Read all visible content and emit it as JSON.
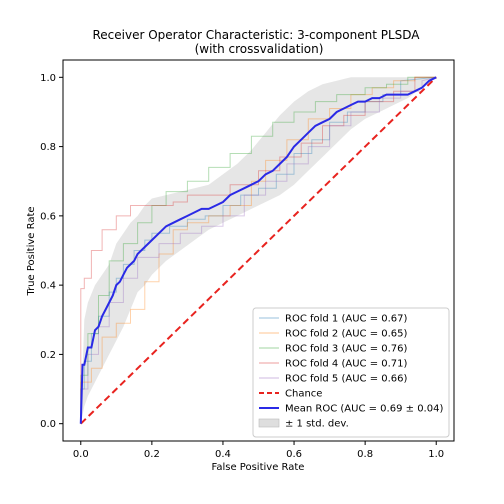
{
  "chart_data": {
    "type": "line",
    "title": "Receiver Operator Characteristic: 3-component PLSDA",
    "subtitle": "(with crossvalidation)",
    "xlabel": "False Positive Rate",
    "ylabel": "True Positive Rate",
    "xlim": [
      -0.05,
      1.05
    ],
    "ylim": [
      -0.05,
      1.05
    ],
    "xticks": [
      "0.0",
      "0.2",
      "0.4",
      "0.6",
      "0.8",
      "1.0"
    ],
    "yticks": [
      "0.0",
      "0.2",
      "0.4",
      "0.6",
      "0.8",
      "1.0"
    ],
    "grid": false,
    "legend_position": "lower-right",
    "series": [
      {
        "name": "ROC fold 1 (AUC = 0.67)",
        "color": "#1f77b4",
        "style": "step-thin",
        "x": [
          0.0,
          0.0,
          0.01,
          0.01,
          0.03,
          0.03,
          0.05,
          0.05,
          0.08,
          0.08,
          0.1,
          0.1,
          0.12,
          0.12,
          0.15,
          0.15,
          0.18,
          0.18,
          0.2,
          0.2,
          0.25,
          0.25,
          0.3,
          0.3,
          0.35,
          0.35,
          0.4,
          0.4,
          0.45,
          0.45,
          0.5,
          0.5,
          0.55,
          0.55,
          0.6,
          0.6,
          0.65,
          0.65,
          0.7,
          0.7,
          0.75,
          0.75,
          0.8,
          0.8,
          0.85,
          0.85,
          0.9,
          0.9,
          1.0
        ],
        "y": [
          0.0,
          0.1,
          0.1,
          0.18,
          0.18,
          0.26,
          0.26,
          0.31,
          0.31,
          0.38,
          0.38,
          0.42,
          0.42,
          0.46,
          0.46,
          0.5,
          0.5,
          0.53,
          0.53,
          0.55,
          0.55,
          0.57,
          0.57,
          0.59,
          0.59,
          0.6,
          0.6,
          0.63,
          0.63,
          0.66,
          0.66,
          0.68,
          0.68,
          0.72,
          0.72,
          0.78,
          0.78,
          0.82,
          0.82,
          0.87,
          0.87,
          0.9,
          0.9,
          0.93,
          0.93,
          0.95,
          0.95,
          0.99,
          1.0
        ]
      },
      {
        "name": "ROC fold 2 (AUC = 0.65)",
        "color": "#ff7f0e",
        "style": "step-thin",
        "x": [
          0.0,
          0.0,
          0.03,
          0.03,
          0.06,
          0.06,
          0.1,
          0.1,
          0.14,
          0.14,
          0.18,
          0.18,
          0.22,
          0.22,
          0.26,
          0.26,
          0.3,
          0.3,
          0.36,
          0.36,
          0.42,
          0.42,
          0.48,
          0.48,
          0.52,
          0.52,
          0.58,
          0.58,
          0.64,
          0.64,
          0.7,
          0.7,
          0.76,
          0.76,
          0.82,
          0.82,
          0.88,
          0.88,
          0.94,
          0.94,
          1.0
        ],
        "y": [
          0.0,
          0.12,
          0.12,
          0.16,
          0.16,
          0.25,
          0.25,
          0.29,
          0.29,
          0.33,
          0.33,
          0.41,
          0.41,
          0.49,
          0.49,
          0.56,
          0.56,
          0.58,
          0.58,
          0.6,
          0.6,
          0.63,
          0.63,
          0.7,
          0.7,
          0.76,
          0.76,
          0.82,
          0.82,
          0.88,
          0.88,
          0.91,
          0.91,
          0.95,
          0.95,
          0.97,
          0.97,
          0.99,
          0.99,
          1.0,
          1.0
        ]
      },
      {
        "name": "ROC fold 3 (AUC = 0.76)",
        "color": "#2ca02c",
        "style": "step-thin",
        "x": [
          0.0,
          0.0,
          0.02,
          0.02,
          0.05,
          0.05,
          0.08,
          0.08,
          0.12,
          0.12,
          0.16,
          0.16,
          0.2,
          0.2,
          0.24,
          0.24,
          0.3,
          0.3,
          0.36,
          0.36,
          0.42,
          0.42,
          0.48,
          0.48,
          0.54,
          0.54,
          0.6,
          0.6,
          0.66,
          0.66,
          0.72,
          0.72,
          0.8,
          0.8,
          0.86,
          0.86,
          0.92,
          0.92,
          1.0
        ],
        "y": [
          0.0,
          0.14,
          0.14,
          0.26,
          0.26,
          0.37,
          0.37,
          0.47,
          0.47,
          0.52,
          0.52,
          0.58,
          0.58,
          0.63,
          0.63,
          0.67,
          0.67,
          0.7,
          0.7,
          0.74,
          0.74,
          0.78,
          0.78,
          0.83,
          0.83,
          0.87,
          0.87,
          0.9,
          0.9,
          0.93,
          0.93,
          0.95,
          0.95,
          0.97,
          0.97,
          0.98,
          0.98,
          1.0,
          1.0
        ]
      },
      {
        "name": "ROC fold 4 (AUC = 0.71)",
        "color": "#d62728",
        "style": "step-thin",
        "x": [
          0.0,
          0.0,
          0.01,
          0.01,
          0.03,
          0.03,
          0.06,
          0.06,
          0.1,
          0.1,
          0.14,
          0.14,
          0.2,
          0.2,
          0.26,
          0.26,
          0.3,
          0.3,
          0.36,
          0.36,
          0.42,
          0.42,
          0.5,
          0.5,
          0.56,
          0.56,
          0.62,
          0.62,
          0.68,
          0.68,
          0.74,
          0.74,
          0.8,
          0.8,
          0.88,
          0.88,
          0.94,
          0.94,
          1.0
        ],
        "y": [
          0.0,
          0.39,
          0.39,
          0.42,
          0.42,
          0.5,
          0.5,
          0.56,
          0.56,
          0.6,
          0.6,
          0.63,
          0.63,
          0.63,
          0.63,
          0.64,
          0.64,
          0.66,
          0.66,
          0.66,
          0.66,
          0.69,
          0.69,
          0.73,
          0.73,
          0.77,
          0.77,
          0.81,
          0.81,
          0.86,
          0.86,
          0.89,
          0.89,
          0.93,
          0.93,
          0.96,
          0.96,
          1.0,
          1.0
        ]
      },
      {
        "name": "ROC fold 5 (AUC = 0.66)",
        "color": "#9467bd",
        "style": "step-thin",
        "x": [
          0.0,
          0.0,
          0.02,
          0.02,
          0.05,
          0.05,
          0.08,
          0.08,
          0.12,
          0.12,
          0.16,
          0.16,
          0.22,
          0.22,
          0.28,
          0.28,
          0.34,
          0.34,
          0.4,
          0.4,
          0.46,
          0.46,
          0.52,
          0.52,
          0.58,
          0.58,
          0.64,
          0.64,
          0.7,
          0.7,
          0.76,
          0.76,
          0.84,
          0.84,
          0.9,
          0.9,
          0.96,
          0.96,
          1.0
        ],
        "y": [
          0.0,
          0.1,
          0.1,
          0.2,
          0.2,
          0.28,
          0.28,
          0.35,
          0.35,
          0.42,
          0.42,
          0.48,
          0.48,
          0.52,
          0.52,
          0.55,
          0.55,
          0.57,
          0.57,
          0.6,
          0.6,
          0.66,
          0.66,
          0.7,
          0.7,
          0.75,
          0.75,
          0.8,
          0.8,
          0.86,
          0.86,
          0.9,
          0.9,
          0.94,
          0.94,
          0.96,
          0.96,
          0.99,
          1.0
        ]
      },
      {
        "name": "Chance",
        "color": "#e8231f",
        "style": "dashed",
        "x": [
          0.0,
          1.0
        ],
        "y": [
          0.0,
          1.0
        ]
      },
      {
        "name": "Mean ROC (AUC = 0.69 ± 0.04)",
        "color": "#2a2ae6",
        "style": "bold",
        "x": [
          0.0,
          0.005,
          0.01,
          0.02,
          0.03,
          0.04,
          0.05,
          0.06,
          0.07,
          0.08,
          0.09,
          0.1,
          0.11,
          0.12,
          0.13,
          0.14,
          0.15,
          0.16,
          0.18,
          0.2,
          0.22,
          0.24,
          0.26,
          0.28,
          0.3,
          0.32,
          0.34,
          0.36,
          0.38,
          0.4,
          0.42,
          0.44,
          0.46,
          0.48,
          0.5,
          0.52,
          0.54,
          0.56,
          0.58,
          0.6,
          0.62,
          0.64,
          0.66,
          0.68,
          0.7,
          0.72,
          0.74,
          0.76,
          0.78,
          0.8,
          0.82,
          0.84,
          0.86,
          0.88,
          0.9,
          0.92,
          0.94,
          0.96,
          0.98,
          1.0
        ],
        "y": [
          0.0,
          0.17,
          0.17,
          0.22,
          0.22,
          0.27,
          0.28,
          0.31,
          0.33,
          0.35,
          0.37,
          0.4,
          0.41,
          0.43,
          0.45,
          0.46,
          0.47,
          0.49,
          0.51,
          0.53,
          0.55,
          0.57,
          0.58,
          0.59,
          0.6,
          0.61,
          0.62,
          0.62,
          0.63,
          0.64,
          0.66,
          0.67,
          0.68,
          0.69,
          0.7,
          0.72,
          0.73,
          0.75,
          0.77,
          0.8,
          0.82,
          0.84,
          0.86,
          0.87,
          0.88,
          0.9,
          0.91,
          0.92,
          0.93,
          0.93,
          0.94,
          0.94,
          0.95,
          0.95,
          0.95,
          0.95,
          0.96,
          0.97,
          0.99,
          1.0
        ]
      }
    ],
    "std_band": {
      "name": "± 1 std. dev.",
      "color": "#c8c8c8",
      "x": [
        0.0,
        0.01,
        0.02,
        0.04,
        0.06,
        0.08,
        0.1,
        0.12,
        0.14,
        0.16,
        0.18,
        0.2,
        0.24,
        0.28,
        0.32,
        0.36,
        0.4,
        0.44,
        0.48,
        0.52,
        0.56,
        0.6,
        0.64,
        0.68,
        0.72,
        0.76,
        0.8,
        0.84,
        0.88,
        0.92,
        0.96,
        1.0
      ],
      "upper": [
        0.0,
        0.3,
        0.35,
        0.4,
        0.43,
        0.46,
        0.52,
        0.55,
        0.58,
        0.6,
        0.63,
        0.65,
        0.66,
        0.67,
        0.68,
        0.69,
        0.72,
        0.75,
        0.79,
        0.84,
        0.89,
        0.93,
        0.96,
        0.98,
        0.99,
        1.0,
        1.0,
        1.0,
        1.0,
        1.0,
        1.0,
        1.0
      ],
      "lower": [
        0.0,
        0.05,
        0.08,
        0.12,
        0.16,
        0.2,
        0.24,
        0.28,
        0.33,
        0.38,
        0.4,
        0.43,
        0.47,
        0.5,
        0.53,
        0.56,
        0.58,
        0.6,
        0.62,
        0.64,
        0.66,
        0.69,
        0.73,
        0.77,
        0.81,
        0.85,
        0.88,
        0.9,
        0.92,
        0.94,
        0.97,
        1.0
      ]
    }
  }
}
